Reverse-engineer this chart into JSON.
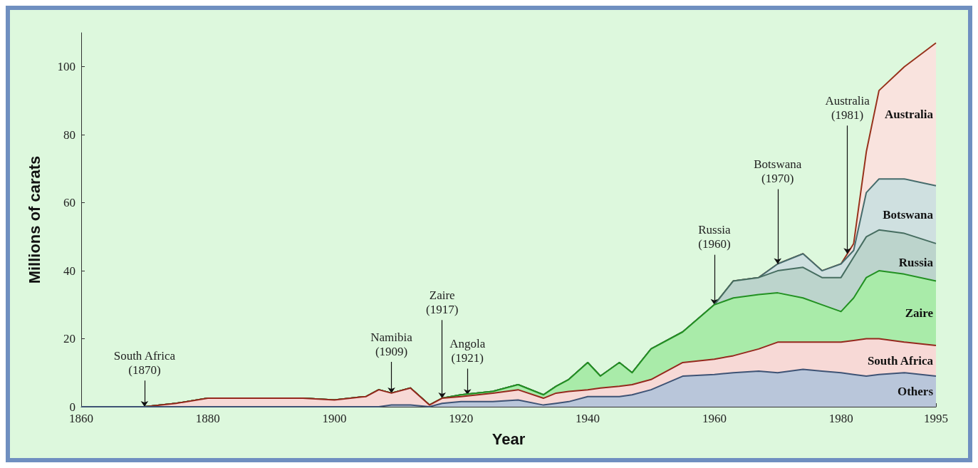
{
  "chart_data": {
    "type": "area",
    "stacked": true,
    "xlabel": "Year",
    "ylabel": "Millions of carats",
    "x": [
      1860,
      1870,
      1875,
      1880,
      1885,
      1890,
      1895,
      1900,
      1905,
      1907,
      1909,
      1912,
      1915,
      1917,
      1920,
      1925,
      1929,
      1933,
      1935,
      1937,
      1940,
      1942,
      1945,
      1947,
      1950,
      1955,
      1960,
      1963,
      1967,
      1970,
      1974,
      1977,
      1980,
      1982,
      1984,
      1986,
      1990,
      1995
    ],
    "series": [
      {
        "name": "Others",
        "color": "#b9c6da",
        "values": [
          0,
          0,
          0,
          0,
          0,
          0,
          0,
          0,
          0,
          0,
          0.5,
          0.5,
          0,
          1,
          1.5,
          1.5,
          2,
          0.5,
          1,
          1.5,
          3,
          3,
          3,
          3.5,
          5,
          9,
          9.5,
          10,
          10.5,
          10,
          11,
          10.5,
          10,
          9.5,
          9,
          9.5,
          10,
          9
        ]
      },
      {
        "name": "South Africa",
        "color": "#f7d9d6",
        "values": [
          0,
          0,
          1,
          2.5,
          2.5,
          2.5,
          2.5,
          2,
          3,
          5,
          3.5,
          5,
          0.5,
          1.5,
          1.5,
          2.5,
          3,
          2,
          3,
          3,
          2,
          2.5,
          3,
          3,
          3,
          4,
          4.5,
          5,
          6.5,
          9,
          8,
          8.5,
          9,
          10,
          11,
          10.5,
          9,
          9
        ]
      },
      {
        "name": "Zaire",
        "color": "#a9eba9",
        "values": [
          0,
          0,
          0,
          0,
          0,
          0,
          0,
          0,
          0,
          0,
          0,
          0,
          0,
          0,
          0.5,
          0.5,
          1.5,
          1,
          2,
          3.5,
          8,
          3.5,
          7,
          3.5,
          9,
          9,
          16,
          17,
          16,
          14.5,
          13,
          11,
          9,
          12.5,
          18,
          20,
          20,
          19
        ]
      },
      {
        "name": "Russia",
        "color": "#bcd4cc",
        "values": [
          0,
          0,
          0,
          0,
          0,
          0,
          0,
          0,
          0,
          0,
          0,
          0,
          0,
          0,
          0,
          0,
          0,
          0,
          0,
          0,
          0,
          0,
          0,
          0,
          0,
          0,
          0,
          5,
          5,
          6.5,
          9,
          8,
          10,
          12,
          12,
          12,
          12,
          11
        ]
      },
      {
        "name": "Botswana",
        "color": "#cfe0e0",
        "values": [
          0,
          0,
          0,
          0,
          0,
          0,
          0,
          0,
          0,
          0,
          0,
          0,
          0,
          0,
          0,
          0,
          0,
          0,
          0,
          0,
          0,
          0,
          0,
          0,
          0,
          0,
          0,
          0,
          0,
          2,
          4,
          2,
          4,
          2,
          13,
          15,
          16,
          17
        ]
      },
      {
        "name": "Australia",
        "color": "#f9e3de",
        "values": [
          0,
          0,
          0,
          0,
          0,
          0,
          0,
          0,
          0,
          0,
          0,
          0,
          0,
          0,
          0,
          0,
          0,
          0,
          0,
          0,
          0,
          0,
          0,
          0,
          0,
          0,
          0,
          0,
          0,
          0,
          0,
          0,
          0,
          2,
          12,
          26,
          33,
          42
        ]
      }
    ],
    "annotations": [
      {
        "text": "South Africa (1870)",
        "x": 1870,
        "y": 0
      },
      {
        "text": "Namibia (1909)",
        "x": 1909,
        "y": 4
      },
      {
        "text": "Zaire (1917)",
        "x": 1917,
        "y": 2.5
      },
      {
        "text": "Angola (1921)",
        "x": 1921,
        "y": 3.5
      },
      {
        "text": "Russia (1960)",
        "x": 1960,
        "y": 30
      },
      {
        "text": "Botswana (1970)",
        "x": 1970,
        "y": 42
      },
      {
        "text": "Australia (1981)",
        "x": 1981,
        "y": 45
      }
    ],
    "xlim": [
      1860,
      1995
    ],
    "xticks": [
      1860,
      1880,
      1900,
      1920,
      1940,
      1960,
      1980,
      1995
    ],
    "ylim": [
      0,
      110
    ],
    "yticks": [
      0,
      20,
      40,
      60,
      80,
      100
    ],
    "grid": false,
    "legend": false
  }
}
